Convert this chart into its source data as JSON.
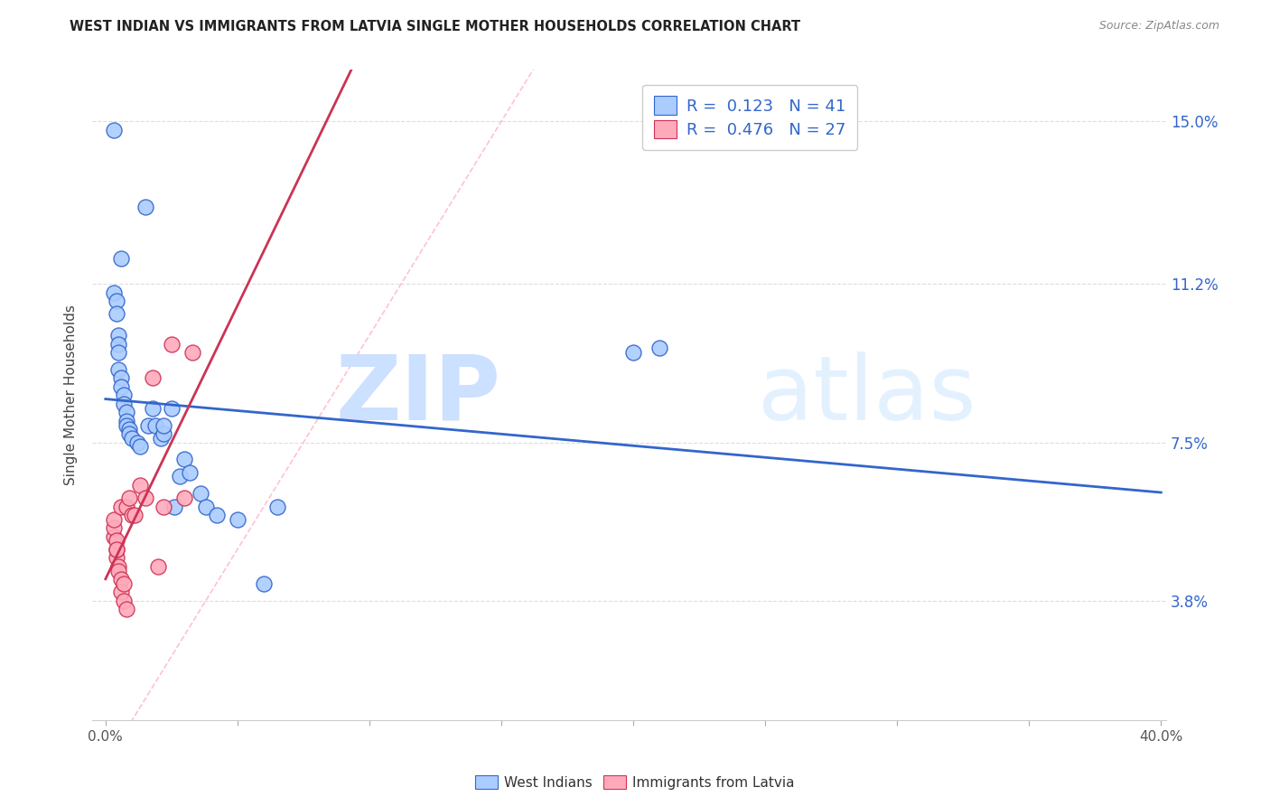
{
  "title": "WEST INDIAN VS IMMIGRANTS FROM LATVIA SINGLE MOTHER HOUSEHOLDS CORRELATION CHART",
  "source": "Source: ZipAtlas.com",
  "ylabel": "Single Mother Households",
  "ytick_labels": [
    "3.8%",
    "7.5%",
    "11.2%",
    "15.0%"
  ],
  "ytick_values": [
    0.038,
    0.075,
    0.112,
    0.15
  ],
  "xlim": [
    -0.005,
    0.402
  ],
  "ylim": [
    0.01,
    0.162
  ],
  "blue_color": "#aaccff",
  "pink_color": "#ffaabb",
  "line_blue": "#3366cc",
  "line_pink": "#cc3355",
  "text_blue": "#3366cc",
  "west_indians_x": [
    0.003,
    0.015,
    0.006,
    0.003,
    0.004,
    0.004,
    0.005,
    0.005,
    0.005,
    0.005,
    0.006,
    0.006,
    0.007,
    0.007,
    0.008,
    0.008,
    0.008,
    0.009,
    0.009,
    0.01,
    0.012,
    0.013,
    0.016,
    0.018,
    0.019,
    0.021,
    0.022,
    0.022,
    0.025,
    0.026,
    0.028,
    0.03,
    0.032,
    0.036,
    0.038,
    0.042,
    0.05,
    0.06,
    0.065,
    0.2,
    0.21
  ],
  "west_indians_y": [
    0.148,
    0.13,
    0.118,
    0.11,
    0.108,
    0.105,
    0.1,
    0.098,
    0.096,
    0.092,
    0.09,
    0.088,
    0.086,
    0.084,
    0.082,
    0.08,
    0.079,
    0.078,
    0.077,
    0.076,
    0.075,
    0.074,
    0.079,
    0.083,
    0.079,
    0.076,
    0.077,
    0.079,
    0.083,
    0.06,
    0.067,
    0.071,
    0.068,
    0.063,
    0.06,
    0.058,
    0.057,
    0.042,
    0.06,
    0.096,
    0.097
  ],
  "latvia_x": [
    0.003,
    0.003,
    0.003,
    0.004,
    0.004,
    0.004,
    0.004,
    0.005,
    0.005,
    0.006,
    0.006,
    0.006,
    0.007,
    0.007,
    0.008,
    0.008,
    0.009,
    0.01,
    0.011,
    0.013,
    0.015,
    0.018,
    0.02,
    0.022,
    0.025,
    0.03,
    0.033
  ],
  "latvia_y": [
    0.053,
    0.055,
    0.057,
    0.048,
    0.05,
    0.052,
    0.05,
    0.046,
    0.045,
    0.043,
    0.06,
    0.04,
    0.038,
    0.042,
    0.06,
    0.036,
    0.062,
    0.058,
    0.058,
    0.065,
    0.062,
    0.09,
    0.046,
    0.06,
    0.098,
    0.062,
    0.096
  ],
  "diag_color": "#ffbbcc",
  "grid_color": "#dddddd",
  "watermark_color1": "#cce0ff",
  "watermark_color2": "#ddeeff"
}
